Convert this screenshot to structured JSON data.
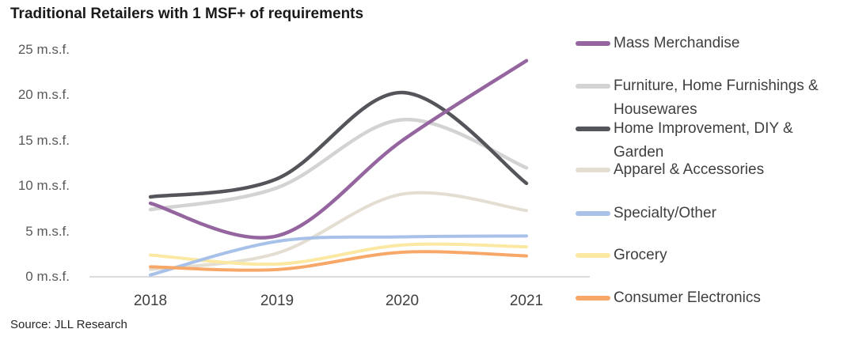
{
  "title": "Traditional Retailers with 1 MSF+ of requirements",
  "source": "Source: JLL Research",
  "chart_data": {
    "type": "line",
    "x": [
      "2018",
      "2019",
      "2020",
      "2021"
    ],
    "xlabel": "",
    "ylabel": "m.s.f.",
    "ylim": [
      0,
      25
    ],
    "y_ticks": [
      {
        "value": 25,
        "label": "25 m.s.f."
      },
      {
        "value": 20,
        "label": "20 m.s.f."
      },
      {
        "value": 15,
        "label": "15 m.s.f."
      },
      {
        "value": 10,
        "label": "10 m.s.f."
      },
      {
        "value": 5,
        "label": "5 m.s.f."
      },
      {
        "value": 0,
        "label": "0 m.s.f."
      }
    ],
    "grid": false,
    "legend_position": "right",
    "axis_line_color": "#dcdcdc",
    "series": [
      {
        "name": "Mass Merchandise",
        "legend_lines": [
          "Mass Merchandise"
        ],
        "color": "#9565a0",
        "stroke_width": 4.5,
        "values": [
          8.1,
          4.5,
          15.0,
          23.8
        ]
      },
      {
        "name": "Furniture, Home Furnishings & Housewares",
        "legend_lines": [
          "Furniture, Home Furnishings &",
          "Housewares"
        ],
        "color": "#d3d3d3",
        "stroke_width": 4.5,
        "values": [
          7.4,
          9.8,
          17.3,
          12.0
        ]
      },
      {
        "name": "Home Improvement, DIY & Garden",
        "legend_lines": [
          "Home Improvement, DIY &",
          "Garden"
        ],
        "color": "#54555a",
        "stroke_width": 4.5,
        "values": [
          8.8,
          10.8,
          20.3,
          10.3
        ]
      },
      {
        "name": "Apparel & Accessories",
        "legend_lines": [
          "Apparel & Accessories"
        ],
        "color": "#e4ded2",
        "stroke_width": 4.0,
        "values": [
          0.8,
          2.6,
          9.1,
          7.3
        ]
      },
      {
        "name": "Specialty/Other",
        "legend_lines": [
          "Specialty/Other"
        ],
        "color": "#a8c1e8",
        "stroke_width": 4.0,
        "values": [
          0.2,
          3.9,
          4.4,
          4.5
        ]
      },
      {
        "name": "Grocery",
        "legend_lines": [
          "Grocery"
        ],
        "color": "#fbe8a2",
        "stroke_width": 4.0,
        "values": [
          2.4,
          1.4,
          3.5,
          3.3
        ]
      },
      {
        "name": "Consumer Electronics",
        "legend_lines": [
          "Consumer Electronics"
        ],
        "color": "#f7a869",
        "stroke_width": 4.0,
        "values": [
          1.1,
          0.8,
          2.7,
          2.3
        ]
      }
    ],
    "draw_order": [
      1,
      3,
      5,
      4,
      2,
      6,
      0
    ]
  }
}
